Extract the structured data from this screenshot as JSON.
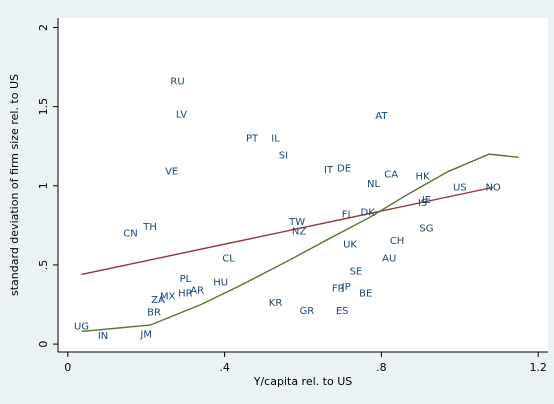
{
  "chart_data": {
    "type": "scatter",
    "x_label": "Y/capita rel. to US",
    "y_label": "standard deviation of firm size rel. to US",
    "xlim": [
      -0.025,
      1.225
    ],
    "ylim": [
      -0.05,
      2.06
    ],
    "xticks": [
      0,
      {
        "value": 0.4,
        "label": ".4"
      },
      {
        "value": 0.8,
        "label": ".8"
      },
      1.2
    ],
    "yticks": [
      0,
      {
        "value": 0.5,
        "label": ".5"
      },
      1,
      1.5,
      2
    ],
    "points": {
      "color": "#1a476f",
      "labels": [
        "RU",
        "LV",
        "PT",
        "IL",
        "SI",
        "AT",
        "VE",
        "IT",
        "DE",
        "CA",
        "HK",
        "NL",
        "US",
        "NO",
        "IE",
        "IS",
        "FI",
        "DK",
        "SG",
        "TW",
        "NZ",
        "CN",
        "TH",
        "UK",
        "CH",
        "CL",
        "AU",
        "SE",
        "PL",
        "AR",
        "HU",
        "HR",
        "MX",
        "ZA",
        "BR",
        "FR",
        "JP",
        "BE",
        "KR",
        "GR",
        "ES",
        "UG",
        "IN",
        "JM"
      ],
      "x": [
        0.28,
        0.29,
        0.47,
        0.53,
        0.55,
        0.8,
        0.265,
        0.665,
        0.705,
        0.825,
        0.905,
        0.78,
        1.0,
        1.085,
        0.915,
        0.905,
        0.71,
        0.765,
        0.915,
        0.585,
        0.59,
        0.16,
        0.21,
        0.72,
        0.84,
        0.41,
        0.82,
        0.735,
        0.3,
        0.33,
        0.39,
        0.3,
        0.255,
        0.23,
        0.22,
        0.69,
        0.71,
        0.76,
        0.53,
        0.61,
        0.7,
        0.035,
        0.09,
        0.2
      ],
      "values": [
        1.66,
        1.45,
        1.3,
        1.3,
        1.19,
        1.44,
        1.09,
        1.1,
        1.11,
        1.07,
        1.06,
        1.01,
        0.99,
        0.99,
        0.91,
        0.89,
        0.82,
        0.83,
        0.73,
        0.77,
        0.71,
        0.7,
        0.74,
        0.63,
        0.65,
        0.54,
        0.54,
        0.46,
        0.41,
        0.34,
        0.39,
        0.32,
        0.3,
        0.28,
        0.2,
        0.35,
        0.36,
        0.32,
        0.26,
        0.21,
        0.21,
        0.11,
        0.05,
        0.06
      ]
    },
    "lines": [
      {
        "color": "#90353b",
        "x": [
          0.035,
          1.085
        ],
        "values": [
          0.44,
          0.99
        ]
      },
      {
        "color": "#55752f",
        "x": [
          0.035,
          0.21,
          0.34,
          0.44,
          0.565,
          0.67,
          0.77,
          0.87,
          0.97,
          1.075,
          1.15
        ],
        "values": [
          0.08,
          0.12,
          0.25,
          0.37,
          0.53,
          0.67,
          0.8,
          0.95,
          1.09,
          1.2,
          1.18
        ]
      }
    ]
  }
}
